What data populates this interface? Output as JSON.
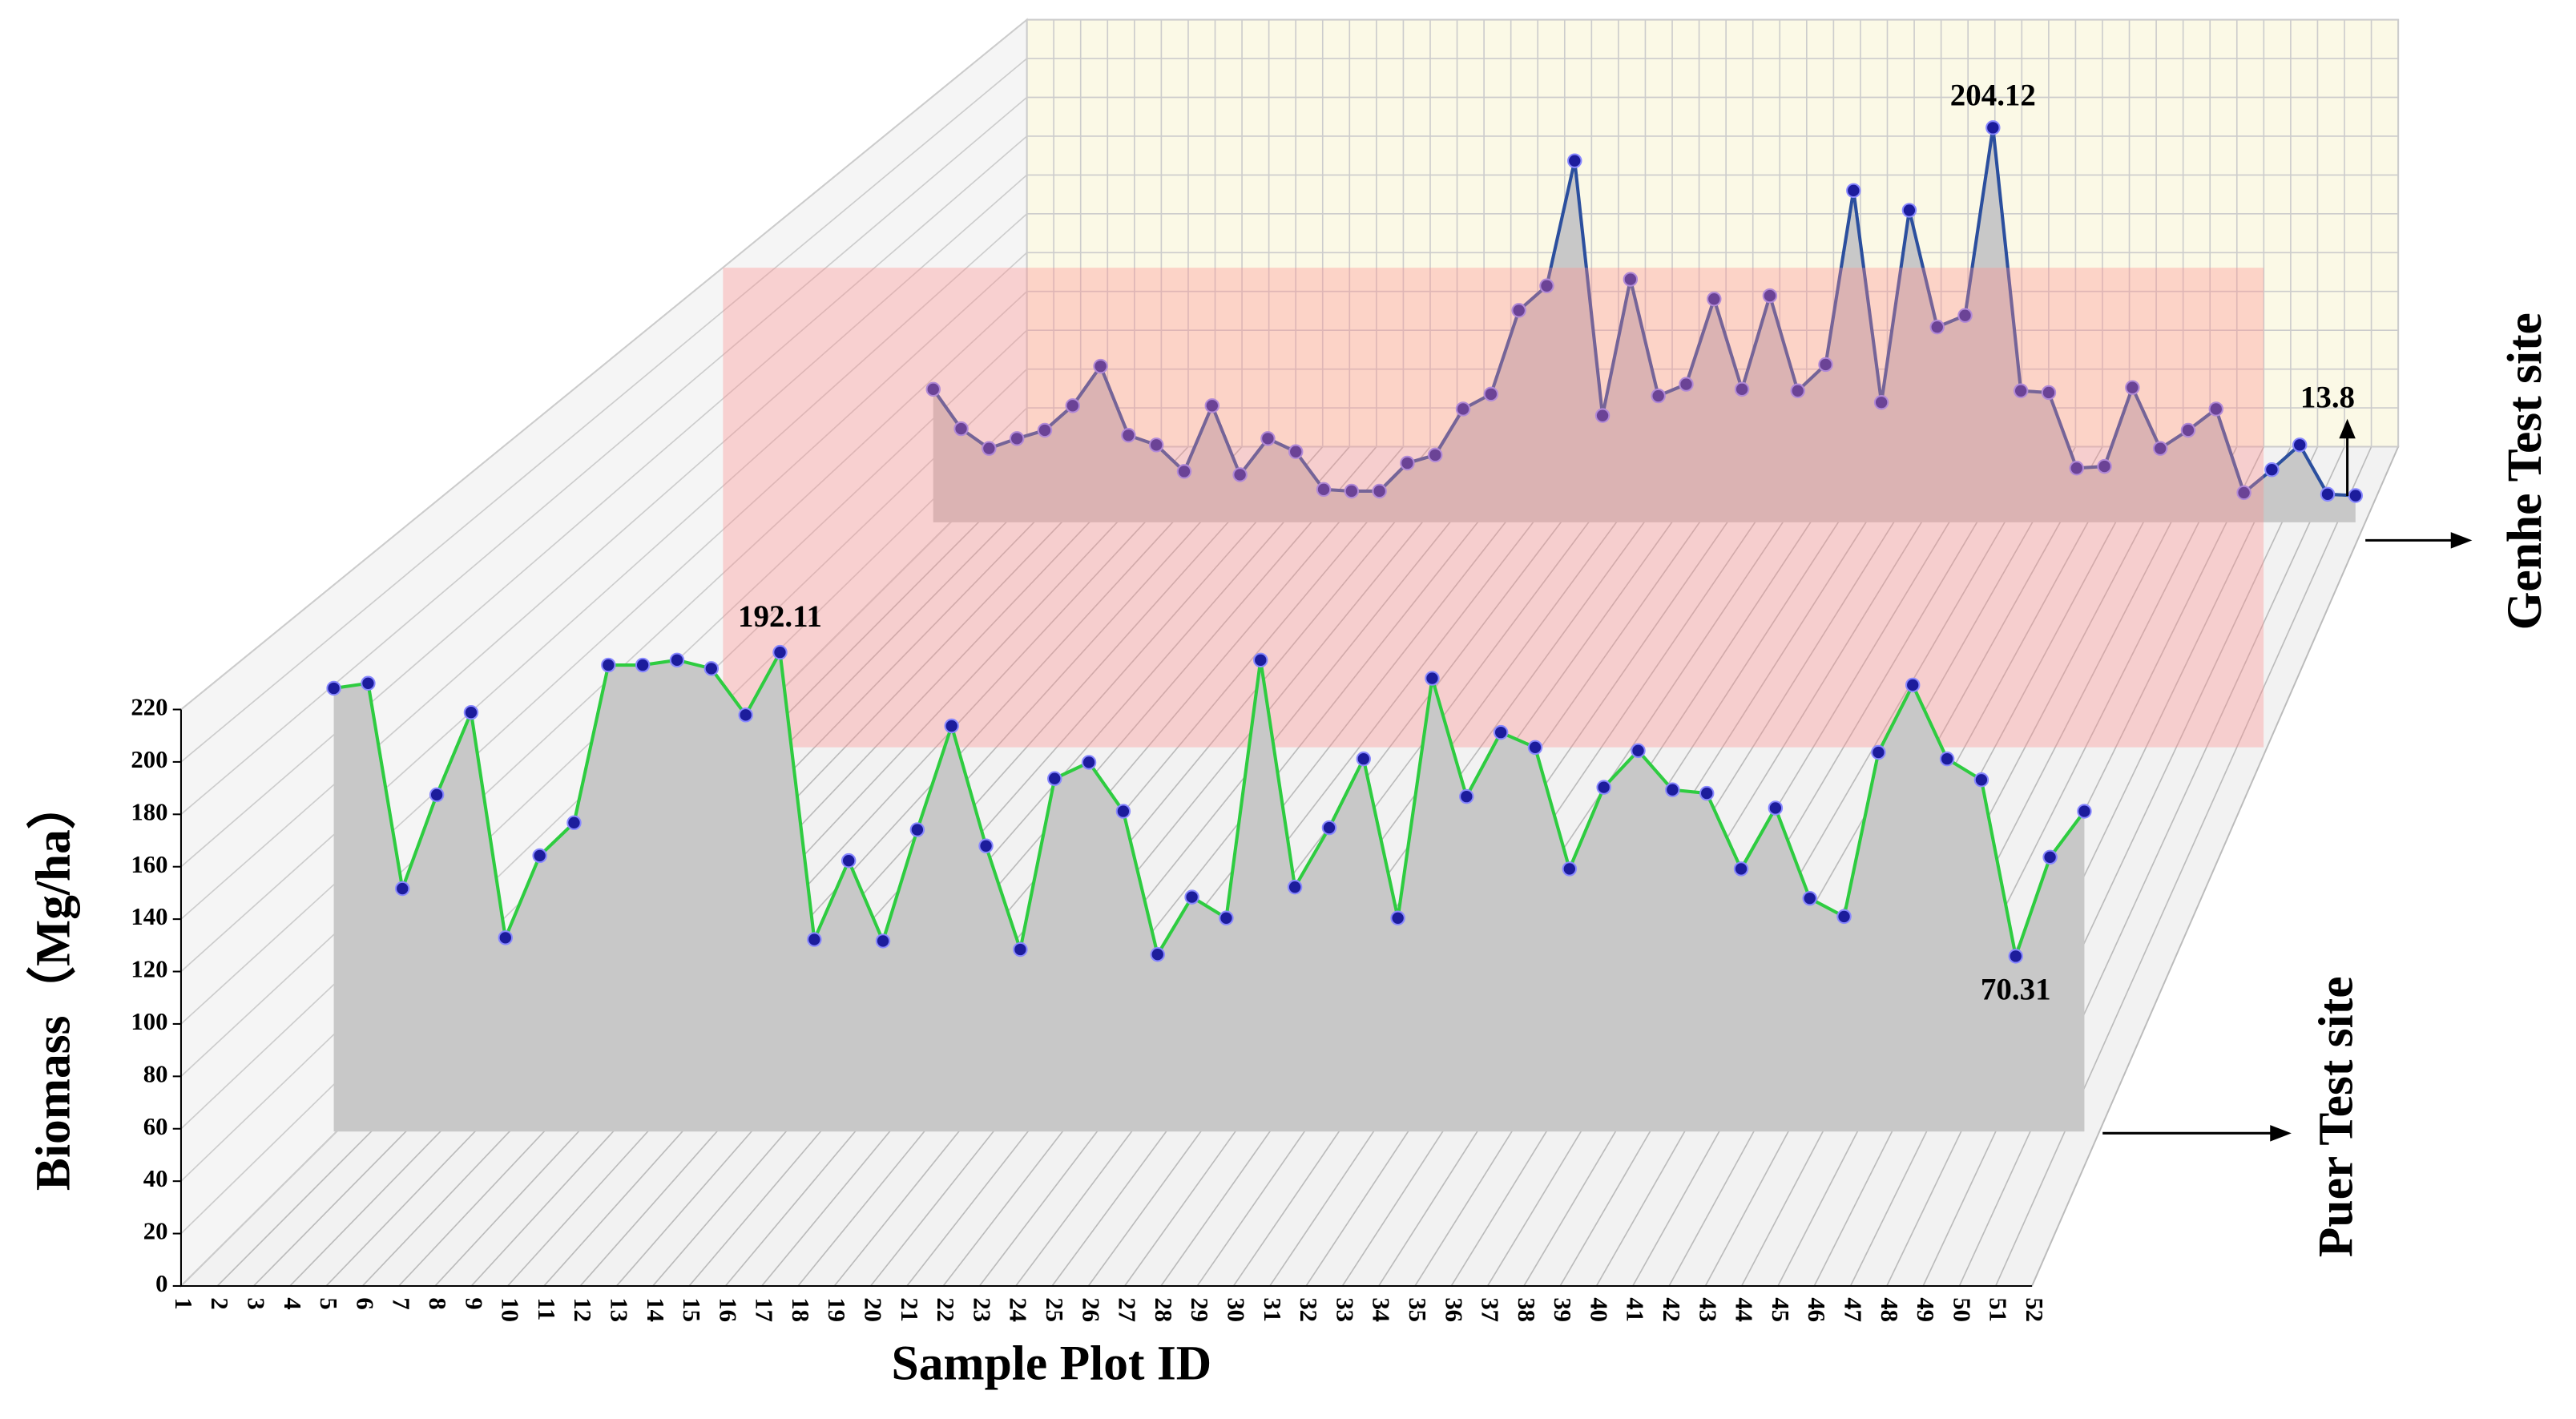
{
  "chart_data": {
    "type": "line3d",
    "x_label": "Sample Plot ID",
    "y_label": "Biomass（Mg/ha）",
    "categories": [
      "1",
      "2",
      "3",
      "4",
      "5",
      "6",
      "7",
      "8",
      "9",
      "10",
      "11",
      "12",
      "13",
      "14",
      "15",
      "16",
      "17",
      "18",
      "19",
      "20",
      "21",
      "22",
      "23",
      "24",
      "25",
      "26",
      "27",
      "28",
      "29",
      "30",
      "31",
      "32",
      "33",
      "34",
      "35",
      "36",
      "37",
      "38",
      "39",
      "40",
      "41",
      "42",
      "43",
      "44",
      "45",
      "46",
      "47",
      "48",
      "49",
      "50",
      "51",
      "52"
    ],
    "ylim": [
      0,
      220
    ],
    "yticks": [
      0,
      20,
      40,
      60,
      80,
      100,
      120,
      140,
      160,
      180,
      200,
      220
    ],
    "grid": true,
    "series": [
      {
        "name": "Puer Test site",
        "color": "#2ecc40",
        "marker_color": "#1c1c9c",
        "fill": "#c8c8c8",
        "values": [
          177.7,
          179.7,
          97.4,
          135,
          168,
          77.7,
          110.6,
          123.8,
          187,
          187,
          189,
          185.6,
          167,
          192.11,
          77,
          108.6,
          76.4,
          121,
          162.6,
          114.5,
          73,
          141.5,
          148,
          128.4,
          71,
          94,
          85.6,
          189,
          98,
          121.8,
          149.4,
          85.6,
          181.7,
          134.3,
          160,
          154,
          105.3,
          138,
          152.7,
          137,
          135.6,
          105.3,
          129.7,
          93.5,
          86.2,
          152,
          179,
          149.4,
          141,
          70.31,
          110,
          128.4
        ]
      },
      {
        "name": "Genhe Test site",
        "color": "#2b4f9e",
        "marker_color": "#1c1c9c",
        "fill": "#c8c8c8",
        "values": [
          68.8,
          48.4,
          38.2,
          43.3,
          47.6,
          60.3,
          80.7,
          45,
          40,
          26.3,
          60.3,
          24.6,
          43.3,
          36.5,
          17,
          16.1,
          16.1,
          30.6,
          34.8,
          58.6,
          66.3,
          109.6,
          122.3,
          187,
          55.2,
          125.7,
          65.4,
          71.4,
          115.5,
          68.8,
          117.2,
          68,
          81.6,
          171.6,
          62,
          161.4,
          101,
          107,
          204.12,
          68,
          67.1,
          28,
          28.9,
          69.7,
          38.2,
          47.6,
          58.6,
          15.3,
          27.2,
          40,
          14.5,
          13.8
        ]
      }
    ]
  }
}
